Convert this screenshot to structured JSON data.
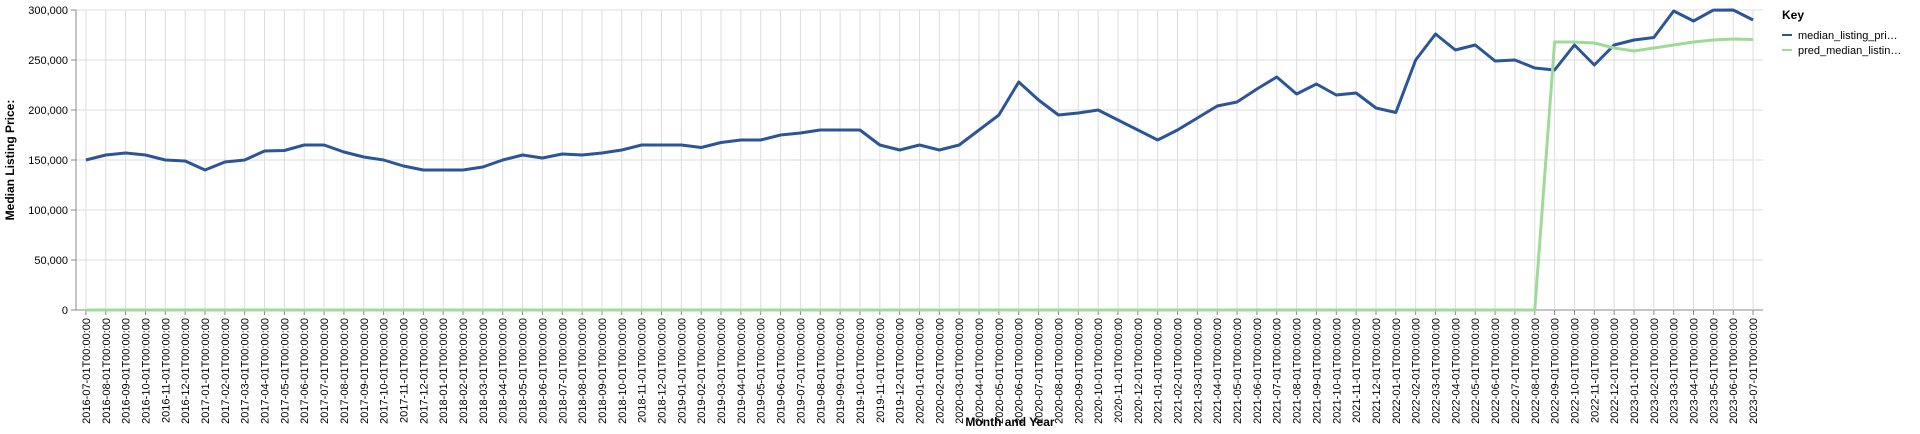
{
  "chart_data": {
    "type": "line",
    "x_label": "Month and Year",
    "y_label": "Median Listing Price:",
    "legend_title": "Key",
    "legend_position": "right",
    "grid": true,
    "categories": [
      "2016-07-01T00:00:00",
      "2016-08-01T00:00:00",
      "2016-09-01T00:00:00",
      "2016-10-01T00:00:00",
      "2016-11-01T00:00:00",
      "2016-12-01T00:00:00",
      "2017-01-01T00:00:00",
      "2017-02-01T00:00:00",
      "2017-03-01T00:00:00",
      "2017-04-01T00:00:00",
      "2017-05-01T00:00:00",
      "2017-06-01T00:00:00",
      "2017-07-01T00:00:00",
      "2017-08-01T00:00:00",
      "2017-09-01T00:00:00",
      "2017-10-01T00:00:00",
      "2017-11-01T00:00:00",
      "2017-12-01T00:00:00",
      "2018-01-01T00:00:00",
      "2018-02-01T00:00:00",
      "2018-03-01T00:00:00",
      "2018-04-01T00:00:00",
      "2018-05-01T00:00:00",
      "2018-06-01T00:00:00",
      "2018-07-01T00:00:00",
      "2018-08-01T00:00:00",
      "2018-09-01T00:00:00",
      "2018-10-01T00:00:00",
      "2018-11-01T00:00:00",
      "2018-12-01T00:00:00",
      "2019-01-01T00:00:00",
      "2019-02-01T00:00:00",
      "2019-03-01T00:00:00",
      "2019-04-01T00:00:00",
      "2019-05-01T00:00:00",
      "2019-06-01T00:00:00",
      "2019-07-01T00:00:00",
      "2019-08-01T00:00:00",
      "2019-09-01T00:00:00",
      "2019-10-01T00:00:00",
      "2019-11-01T00:00:00",
      "2019-12-01T00:00:00",
      "2020-01-01T00:00:00",
      "2020-02-01T00:00:00",
      "2020-03-01T00:00:00",
      "2020-04-01T00:00:00",
      "2020-05-01T00:00:00",
      "2020-06-01T00:00:00",
      "2020-07-01T00:00:00",
      "2020-08-01T00:00:00",
      "2020-09-01T00:00:00",
      "2020-10-01T00:00:00",
      "2020-11-01T00:00:00",
      "2020-12-01T00:00:00",
      "2021-01-01T00:00:00",
      "2021-02-01T00:00:00",
      "2021-03-01T00:00:00",
      "2021-04-01T00:00:00",
      "2021-05-01T00:00:00",
      "2021-06-01T00:00:00",
      "2021-07-01T00:00:00",
      "2021-08-01T00:00:00",
      "2021-09-01T00:00:00",
      "2021-10-01T00:00:00",
      "2021-11-01T00:00:00",
      "2021-12-01T00:00:00",
      "2022-01-01T00:00:00",
      "2022-02-01T00:00:00",
      "2022-03-01T00:00:00",
      "2022-04-01T00:00:00",
      "2022-05-01T00:00:00",
      "2022-06-01T00:00:00",
      "2022-07-01T00:00:00",
      "2022-08-01T00:00:00",
      "2022-09-01T00:00:00",
      "2022-10-01T00:00:00",
      "2022-11-01T00:00:00",
      "2022-12-01T00:00:00",
      "2023-01-01T00:00:00",
      "2023-02-01T00:00:00",
      "2023-03-01T00:00:00",
      "2023-04-01T00:00:00",
      "2023-05-01T00:00:00",
      "2023-06-01T00:00:00",
      "2023-07-01T00:00:00"
    ],
    "series": [
      {
        "name": "median_listing_pri…",
        "color": "#2c5597",
        "values": [
          150000,
          155000,
          157000,
          155000,
          150000,
          149000,
          140000,
          148000,
          150000,
          159000,
          159500,
          165000,
          165000,
          158000,
          153000,
          150000,
          144000,
          140000,
          140000,
          140000,
          143000,
          150000,
          155000,
          152000,
          156000,
          155000,
          157000,
          160000,
          165000,
          165000,
          165000,
          162500,
          167500,
          170000,
          170000,
          175000,
          177000,
          180000,
          180000,
          180000,
          165000,
          160000,
          165000,
          160000,
          165000,
          180000,
          195000,
          228000,
          210000,
          195000,
          197000,
          200000,
          190000,
          180000,
          170000,
          180000,
          192000,
          204000,
          208000,
          221000,
          233000,
          216000,
          226000,
          215000,
          217000,
          202000,
          197500,
          250000,
          276000,
          260000,
          265000,
          249000,
          250000,
          242000,
          240000,
          265000,
          245000,
          265000,
          270000,
          272500,
          299000,
          289000,
          299900,
          300000,
          290000
        ]
      },
      {
        "name": "pred_median_listin…",
        "color": "#a1d99b",
        "values": [
          0,
          0,
          0,
          0,
          0,
          0,
          0,
          0,
          0,
          0,
          0,
          0,
          0,
          0,
          0,
          0,
          0,
          0,
          0,
          0,
          0,
          0,
          0,
          0,
          0,
          0,
          0,
          0,
          0,
          0,
          0,
          0,
          0,
          0,
          0,
          0,
          0,
          0,
          0,
          0,
          0,
          0,
          0,
          0,
          0,
          0,
          0,
          0,
          0,
          0,
          0,
          0,
          0,
          0,
          0,
          0,
          0,
          0,
          0,
          0,
          0,
          0,
          0,
          0,
          0,
          0,
          0,
          0,
          0,
          0,
          0,
          0,
          0,
          0,
          268000,
          268000,
          267000,
          262000,
          259000,
          262000,
          265000,
          268000,
          270000,
          271000,
          270500
        ]
      }
    ],
    "ylim": [
      0,
      300000
    ],
    "yticks": [
      0,
      {
        "value": 50000,
        "label": "50,000"
      },
      {
        "value": 100000,
        "label": "100,000"
      },
      {
        "value": 150000,
        "label": "150,000"
      },
      {
        "value": 200000,
        "label": "200,000"
      },
      {
        "value": 250000,
        "label": "250,000"
      },
      {
        "value": 300000,
        "label": "300,000"
      }
    ]
  }
}
